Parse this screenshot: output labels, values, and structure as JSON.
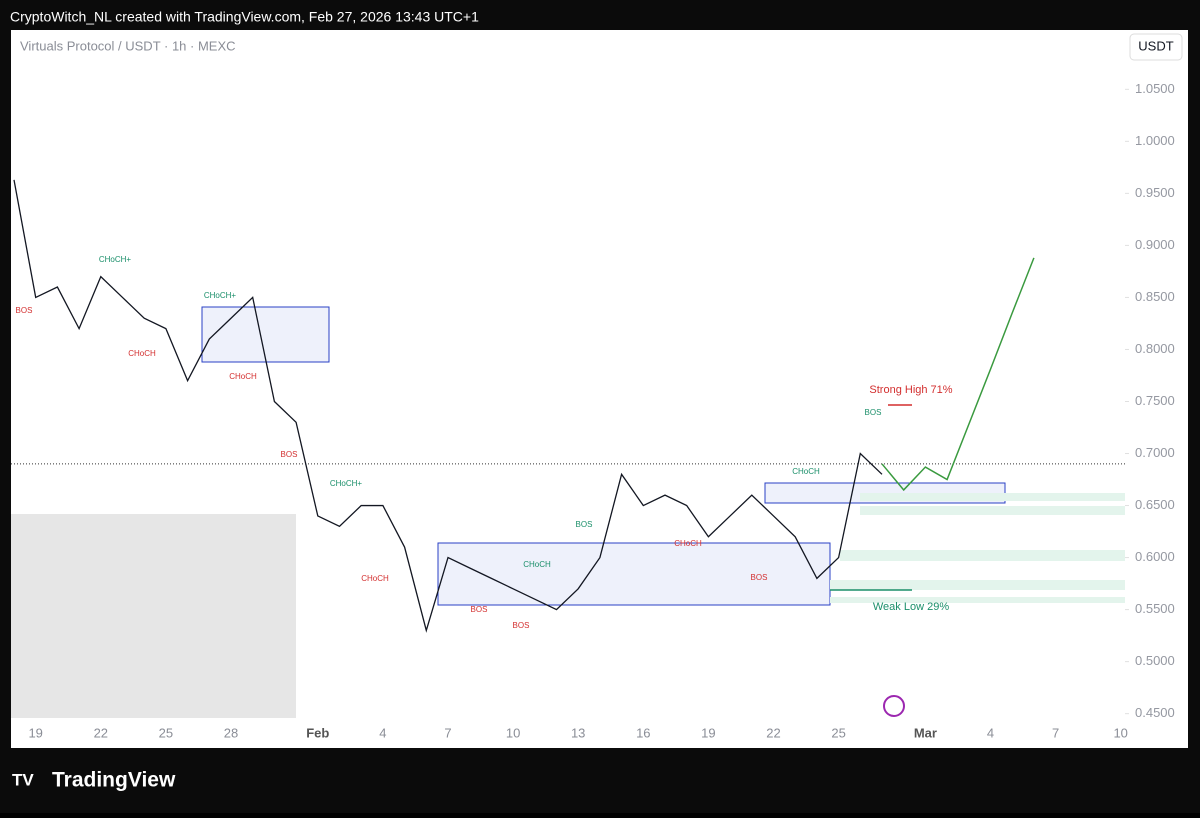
{
  "header": "CryptoWitch_NL created with TradingView.com, Feb 27, 2026 13:43 UTC+1",
  "footer": "TradingView",
  "chart_data": {
    "type": "line",
    "title": "Virtuals Protocol / USDT · 1h · MEXC",
    "currency": "USDT",
    "categories": [
      null,
      "19",
      null,
      null,
      "22",
      null,
      null,
      "25",
      null,
      null,
      "28",
      null,
      null,
      null,
      "Feb",
      null,
      null,
      "4",
      null,
      null,
      "7",
      null,
      null,
      "10",
      null,
      null,
      "13",
      null,
      null,
      "16",
      null,
      null,
      "19",
      null,
      null,
      "22",
      null,
      null,
      "25",
      null,
      null,
      null,
      "Mar",
      null,
      null,
      "4",
      null,
      null,
      "7",
      null,
      null,
      "10"
    ],
    "series": [
      {
        "color": "#131722",
        "values": [
          0.963,
          0.85,
          0.86,
          0.82,
          0.87,
          0.85,
          0.83,
          0.82,
          0.77,
          0.81,
          0.83,
          0.85,
          0.75,
          0.73,
          0.64,
          0.63,
          0.65,
          0.65,
          0.61,
          0.53,
          0.6,
          0.59,
          0.58,
          0.57,
          0.56,
          0.55,
          0.57,
          0.6,
          0.68,
          0.65,
          0.66,
          0.65,
          0.62,
          0.64,
          0.66,
          0.64,
          0.62,
          0.58,
          0.6,
          0.7,
          0.68,
          null,
          null,
          null,
          null,
          null,
          null,
          null,
          null,
          null,
          null,
          null
        ]
      },
      {
        "color": "#3a9a3f",
        "values": [
          null,
          null,
          null,
          null,
          null,
          null,
          null,
          null,
          null,
          null,
          null,
          null,
          null,
          null,
          null,
          null,
          null,
          null,
          null,
          null,
          null,
          null,
          null,
          null,
          null,
          null,
          null,
          null,
          null,
          null,
          null,
          null,
          null,
          null,
          null,
          null,
          null,
          null,
          null,
          null,
          0.69,
          0.665,
          0.687,
          0.675,
          0.728,
          0.781,
          0.835,
          0.888,
          null,
          null,
          null,
          null
        ]
      }
    ],
    "ylim": [
      0.417,
      1.107
    ],
    "yticks": [
      {
        "value": 0.45,
        "label": "0.4500"
      },
      {
        "value": 0.5,
        "label": "0.5000"
      },
      {
        "value": 0.55,
        "label": "0.5500"
      },
      {
        "value": 0.6,
        "label": "0.6000"
      },
      {
        "value": 0.65,
        "label": "0.6500"
      },
      {
        "value": 0.7,
        "label": "0.7000"
      },
      {
        "value": 0.75,
        "label": "0.7500"
      },
      {
        "value": 0.8,
        "label": "0.8000"
      },
      {
        "value": 0.85,
        "label": "0.8500"
      },
      {
        "value": 0.9,
        "label": "0.9000"
      },
      {
        "value": 0.95,
        "label": "0.9500"
      },
      {
        "value": 1.0,
        "label": "1.0000"
      },
      {
        "value": 1.05,
        "label": "1.0500"
      }
    ],
    "price_line": 0.69,
    "annotations": [
      "CHoCH+",
      "BOS",
      "CHoCH",
      "CHoCH+",
      "CHoCH",
      "BOS",
      "CHoCH+",
      "CHoCH",
      "BOS",
      "BOS",
      "CHoCH",
      "BOS",
      "CHoCH",
      "CHoCH",
      "BOS",
      "BOS",
      "Strong High 71%",
      "Weak Low 29%"
    ]
  }
}
